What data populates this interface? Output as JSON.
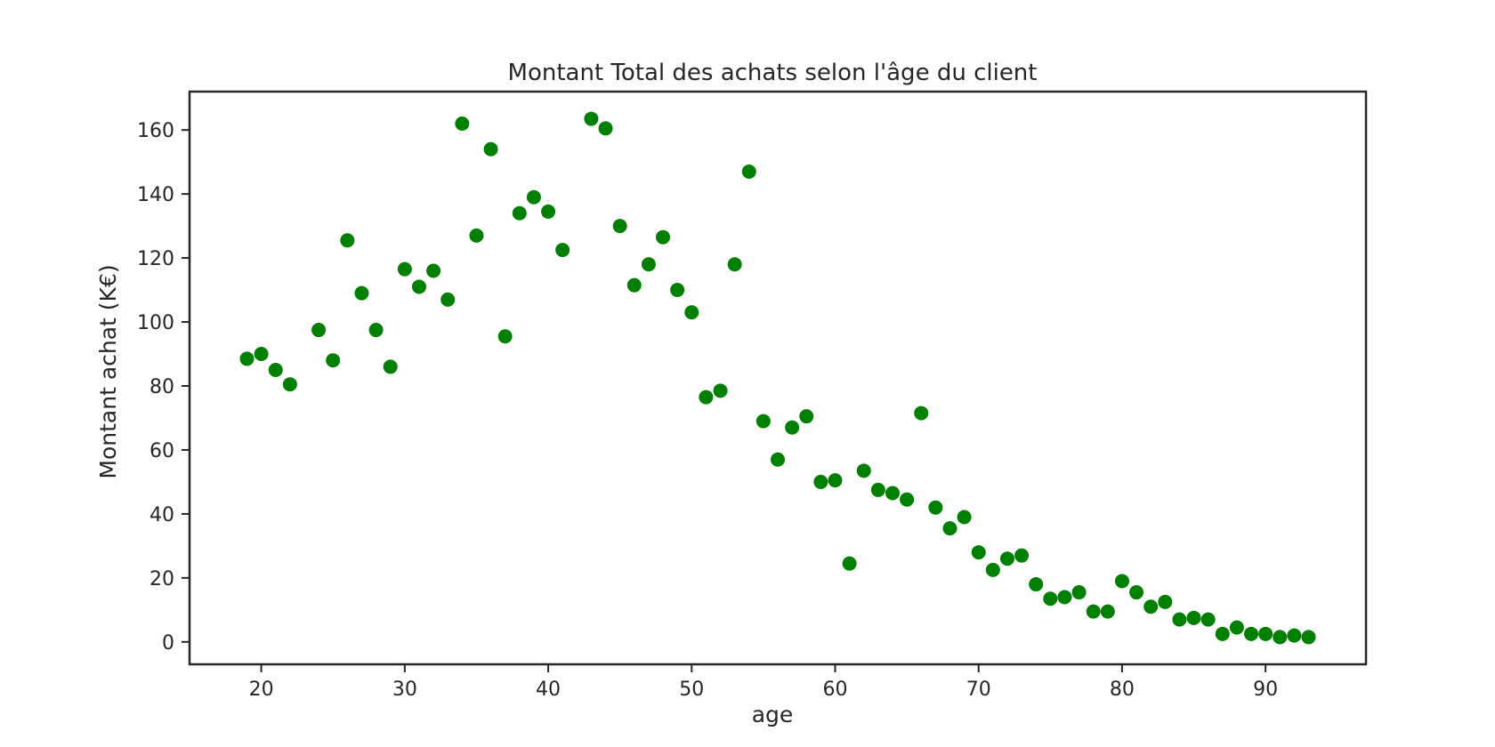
{
  "chart_data": {
    "type": "scatter",
    "title": "Montant Total des achats selon l'âge du client",
    "xlabel": "age",
    "ylabel": "Montant achat (K€)",
    "xlim": [
      15,
      97
    ],
    "ylim": [
      -7,
      172
    ],
    "xticks": [
      20,
      30,
      40,
      50,
      60,
      70,
      80,
      90
    ],
    "yticks": [
      0,
      20,
      40,
      60,
      80,
      100,
      120,
      140,
      160
    ],
    "grid": false,
    "marker_color": "#008000",
    "points": [
      [
        19,
        88.5
      ],
      [
        20,
        90
      ],
      [
        21,
        85
      ],
      [
        22,
        80.5
      ],
      [
        24,
        97.5
      ],
      [
        25,
        88
      ],
      [
        26,
        125.5
      ],
      [
        27,
        109
      ],
      [
        28,
        97.5
      ],
      [
        29,
        86
      ],
      [
        30,
        116.5
      ],
      [
        31,
        111
      ],
      [
        32,
        116
      ],
      [
        33,
        107
      ],
      [
        34,
        162
      ],
      [
        35,
        127
      ],
      [
        36,
        154
      ],
      [
        37,
        95.5
      ],
      [
        38,
        134
      ],
      [
        39,
        139
      ],
      [
        40,
        134.5
      ],
      [
        41,
        122.5
      ],
      [
        43,
        163.5
      ],
      [
        44,
        160.5
      ],
      [
        45,
        130
      ],
      [
        46,
        111.5
      ],
      [
        47,
        118
      ],
      [
        48,
        126.5
      ],
      [
        49,
        110
      ],
      [
        50,
        103
      ],
      [
        51,
        76.5
      ],
      [
        52,
        78.5
      ],
      [
        53,
        118
      ],
      [
        54,
        147
      ],
      [
        55,
        69
      ],
      [
        56,
        57
      ],
      [
        57,
        67
      ],
      [
        58,
        70.5
      ],
      [
        59,
        50
      ],
      [
        60,
        50.5
      ],
      [
        61,
        24.5
      ],
      [
        62,
        53.5
      ],
      [
        63,
        47.5
      ],
      [
        64,
        46.5
      ],
      [
        65,
        44.5
      ],
      [
        66,
        71.5
      ],
      [
        67,
        42
      ],
      [
        68,
        35.5
      ],
      [
        69,
        39
      ],
      [
        70,
        28
      ],
      [
        71,
        22.5
      ],
      [
        72,
        26
      ],
      [
        73,
        27
      ],
      [
        74,
        18
      ],
      [
        75,
        13.5
      ],
      [
        76,
        14
      ],
      [
        77,
        15.5
      ],
      [
        78,
        9.5
      ],
      [
        79,
        9.5
      ],
      [
        80,
        19
      ],
      [
        81,
        15.5
      ],
      [
        82,
        11
      ],
      [
        83,
        12.5
      ],
      [
        84,
        7
      ],
      [
        85,
        7.5
      ],
      [
        86,
        7
      ],
      [
        87,
        2.5
      ],
      [
        88,
        4.5
      ],
      [
        89,
        2.5
      ],
      [
        90,
        2.5
      ],
      [
        91,
        1.5
      ],
      [
        92,
        2
      ],
      [
        93,
        1.5
      ]
    ]
  }
}
